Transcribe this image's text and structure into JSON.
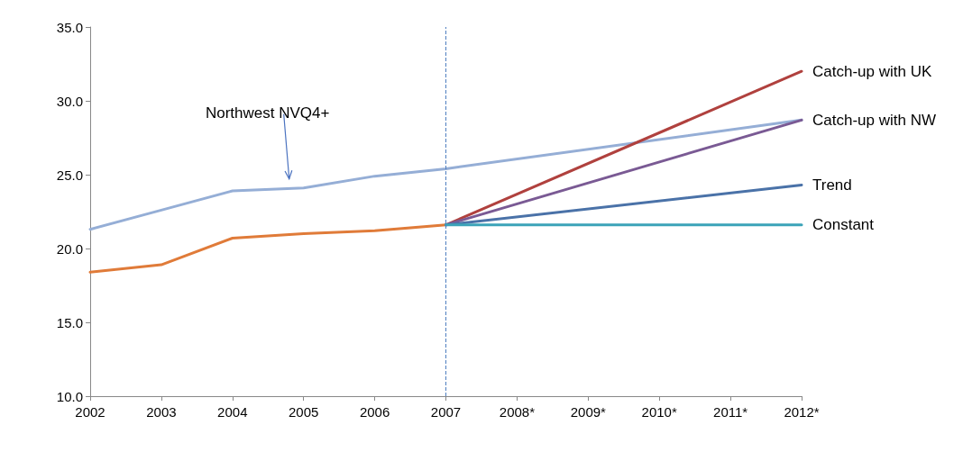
{
  "chart_data": {
    "type": "line",
    "categories": [
      "2002",
      "2003",
      "2004",
      "2005",
      "2006",
      "2007",
      "2008*",
      "2009*",
      "2010*",
      "2011*",
      "2012*"
    ],
    "ylim": [
      10,
      35
    ],
    "yticks": [
      {
        "value": 10,
        "label": "10.0"
      },
      {
        "value": 15,
        "label": "15.0"
      },
      {
        "value": 20,
        "label": "20.0"
      },
      {
        "value": 25,
        "label": "25.0"
      },
      {
        "value": 30,
        "label": "30.0"
      },
      {
        "value": 35,
        "label": "35.0"
      }
    ],
    "series": [
      {
        "name": "Northwest NVQ4+",
        "color": "#95aed6",
        "values": [
          21.3,
          22.6,
          23.9,
          24.1,
          24.9,
          25.4,
          null,
          null,
          null,
          null,
          28.7
        ]
      },
      {
        "color": "#e07b39",
        "values": [
          18.4,
          18.9,
          20.7,
          21.0,
          21.2,
          21.6,
          null,
          null,
          null,
          null,
          null
        ]
      },
      {
        "name": "Catch-up with UK",
        "color": "#b0413e",
        "values": [
          null,
          null,
          null,
          null,
          null,
          21.6,
          null,
          null,
          null,
          null,
          32.0
        ]
      },
      {
        "name": "Catch-up with NW",
        "color": "#7a5a94",
        "values": [
          null,
          null,
          null,
          null,
          null,
          21.6,
          null,
          null,
          null,
          null,
          28.7
        ]
      },
      {
        "name": "Trend",
        "color": "#4a72a8",
        "values": [
          null,
          null,
          null,
          null,
          null,
          21.6,
          null,
          null,
          null,
          null,
          24.3
        ]
      },
      {
        "name": "Constant",
        "color": "#3ba3b8",
        "values": [
          null,
          null,
          null,
          null,
          null,
          21.6,
          null,
          null,
          null,
          null,
          21.6
        ]
      }
    ],
    "ref_lines": [
      {
        "axis": "x",
        "value": "2007",
        "color": "#4f7fc0",
        "line_style": "dashed"
      }
    ],
    "grid": false,
    "legend": false,
    "marker": "none",
    "line_style": "solid"
  }
}
